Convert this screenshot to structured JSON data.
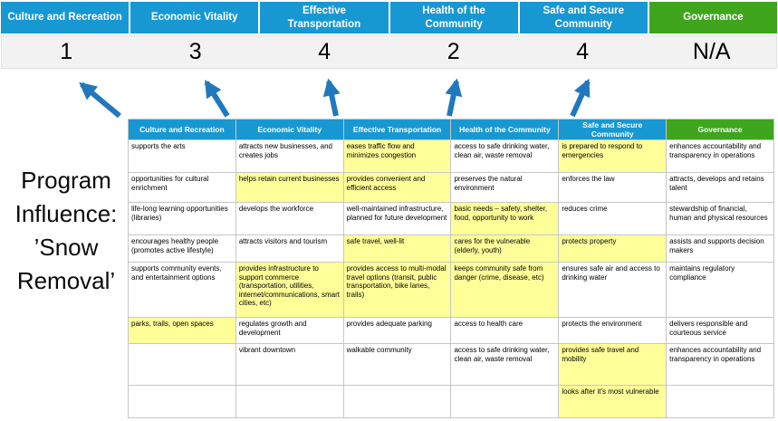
{
  "title": {
    "text": "Program Influence: ’Snow Removal’"
  },
  "colors": {
    "header_blue": "#1898d3",
    "header_green": "#3fa51d",
    "highlight_yellow": "#ffff99",
    "arrow_blue": "#2278bd",
    "score_band_bg": "#f2f2f2"
  },
  "categories": [
    {
      "label": "Culture and Recreation",
      "score": "1",
      "color": "blue"
    },
    {
      "label": "Economic Vitality",
      "score": "3",
      "color": "blue"
    },
    {
      "label": "Effective Transportation",
      "score": "4",
      "color": "blue"
    },
    {
      "label": "Health of the Community",
      "score": "2",
      "color": "blue"
    },
    {
      "label": "Safe and Secure Community",
      "score": "4",
      "color": "blue"
    },
    {
      "label": "Governance",
      "score": "N/A",
      "color": "green"
    }
  ],
  "matrix": {
    "headers": [
      "Culture and Recreation",
      "Economic Vitality",
      "Effective Transportation",
      "Health of the Community",
      "Safe and Secure Community",
      "Governance"
    ],
    "rows": [
      [
        {
          "t": "supports the arts",
          "hl": false
        },
        {
          "t": "attracts new businesses, and creates jobs",
          "hl": false
        },
        {
          "t": "eases traffic flow and minimizes congestion",
          "hl": true
        },
        {
          "t": "access to safe drinking water, clean air, waste removal",
          "hl": false
        },
        {
          "t": "is prepared to respond to emergencies",
          "hl": true
        },
        {
          "t": "enhances accountability and transparency in operations",
          "hl": false
        }
      ],
      [
        {
          "t": "opportunities for cultural enrichment",
          "hl": false
        },
        {
          "t": "helps retain current businesses",
          "hl": true
        },
        {
          "t": "provides convenient and efficient access",
          "hl": true
        },
        {
          "t": "preserves the natural environment",
          "hl": false
        },
        {
          "t": "enforces the law",
          "hl": false
        },
        {
          "t": "attracts, develops and retains talent",
          "hl": false
        }
      ],
      [
        {
          "t": "life-long learning opportunities (libraries)",
          "hl": false
        },
        {
          "t": "develops the workforce",
          "hl": false
        },
        {
          "t": "well-maintained infrastructure, planned for future development",
          "hl": false
        },
        {
          "t": "basic needs – safety, shelter, food, opportunity to work",
          "hl": true
        },
        {
          "t": "reduces crime",
          "hl": false
        },
        {
          "t": "stewardship of financial, human and physical resources",
          "hl": false
        }
      ],
      [
        {
          "t": "encourages healthy people (promotes active lifestyle)",
          "hl": false
        },
        {
          "t": "attracts visitors and tourism",
          "hl": false
        },
        {
          "t": "safe travel, well-lit",
          "hl": true
        },
        {
          "t": "cares for the vulnerable (elderly, youth)",
          "hl": true
        },
        {
          "t": "protects property",
          "hl": true
        },
        {
          "t": "assists and supports decision makers",
          "hl": false
        }
      ],
      [
        {
          "t": "supports community events, and entertainment options",
          "hl": false
        },
        {
          "t": "provides infrastructure to support commerce (transportation, utilities, internet/communications, smart cities, etc)",
          "hl": true
        },
        {
          "t": "provides access to multi-modal travel options (transit, public transportation, bike lanes, trails)",
          "hl": true
        },
        {
          "t": "keeps community safe from danger (crime, disease, etc)",
          "hl": true
        },
        {
          "t": "ensures safe air and access to drinking water",
          "hl": false
        },
        {
          "t": "maintains regulatory compliance",
          "hl": false
        }
      ],
      [
        {
          "t": "parks, trails, open spaces",
          "hl": true
        },
        {
          "t": "regulates growth and development",
          "hl": false
        },
        {
          "t": "provides adequate parking",
          "hl": false
        },
        {
          "t": "access to health care",
          "hl": false
        },
        {
          "t": "protects the environment",
          "hl": false
        },
        {
          "t": "delivers responsible and courteous service",
          "hl": false
        }
      ],
      [
        {
          "t": "",
          "hl": false
        },
        {
          "t": "vibrant downtown",
          "hl": false
        },
        {
          "t": "walkable community",
          "hl": false
        },
        {
          "t": "access to safe drinking water, clean air, waste removal",
          "hl": false
        },
        {
          "t": "provides safe travel and mobility",
          "hl": true
        },
        {
          "t": "enhances accountability and transparency in operations",
          "hl": false
        }
      ],
      [
        {
          "t": "",
          "hl": false
        },
        {
          "t": "",
          "hl": false
        },
        {
          "t": "",
          "hl": false
        },
        {
          "t": "",
          "hl": false
        },
        {
          "t": "looks after it's most vulnerable",
          "hl": true
        },
        {
          "t": "",
          "hl": false
        }
      ]
    ]
  }
}
